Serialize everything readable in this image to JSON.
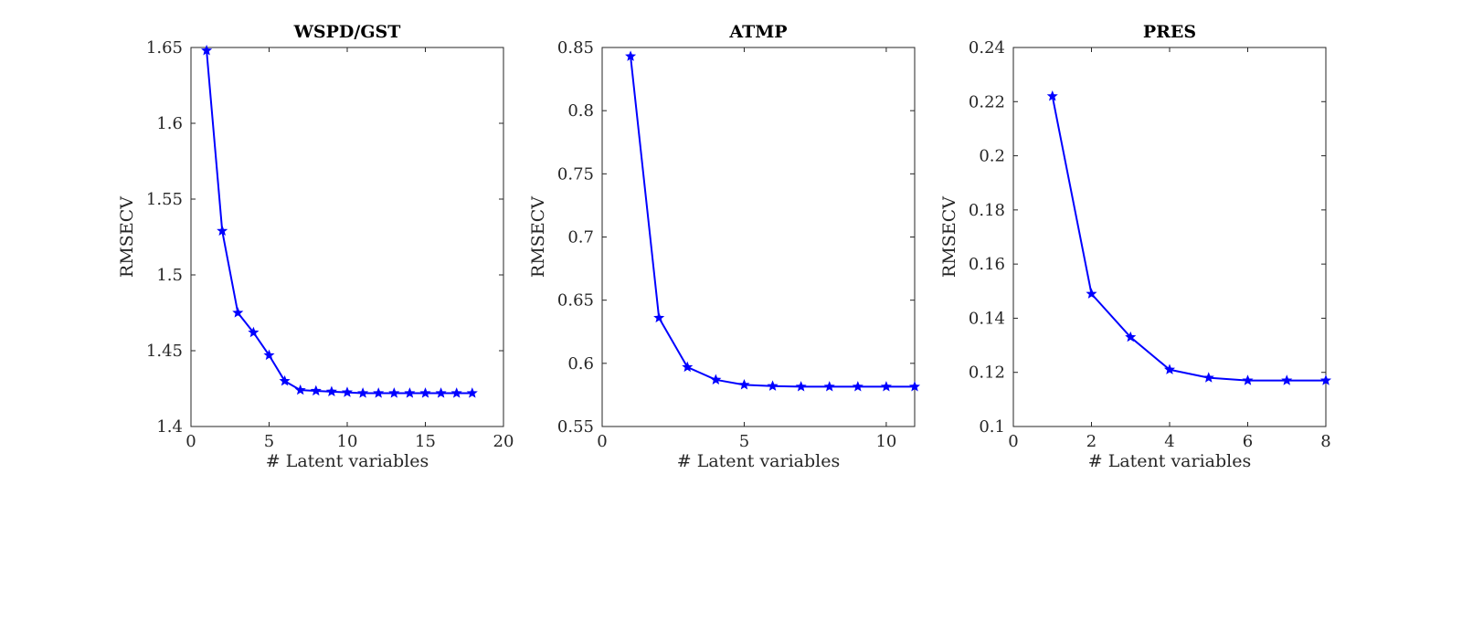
{
  "chart_data": [
    {
      "type": "line",
      "title": "WSPD/GST",
      "xlabel": "# Latent variables",
      "ylabel": "RMSECV",
      "xlim": [
        0,
        20
      ],
      "ylim": [
        1.4,
        1.65
      ],
      "xticks": [
        0,
        5,
        10,
        15,
        20
      ],
      "yticks": [
        1.4,
        1.45,
        1.5,
        1.55,
        1.6,
        1.65
      ],
      "xtick_labels": [
        "0",
        "5",
        "10",
        "15",
        "20"
      ],
      "ytick_labels": [
        "1.4",
        "1.45",
        "1.5",
        "1.55",
        "1.6",
        "1.65"
      ],
      "grid": false,
      "series": [
        {
          "color": "#0000ff",
          "marker": "star",
          "x": [
            1,
            2,
            3,
            4,
            5,
            6,
            7,
            8,
            9,
            10,
            11,
            12,
            13,
            14,
            15,
            16,
            17,
            18
          ],
          "y": [
            1.648,
            1.529,
            1.475,
            1.462,
            1.447,
            1.43,
            1.424,
            1.4235,
            1.423,
            1.4225,
            1.422,
            1.422,
            1.422,
            1.422,
            1.422,
            1.422,
            1.422,
            1.422
          ]
        }
      ]
    },
    {
      "type": "line",
      "title": "ATMP",
      "xlabel": "# Latent variables",
      "ylabel": "RMSECV",
      "xlim": [
        0,
        11
      ],
      "ylim": [
        0.55,
        0.85
      ],
      "xticks": [
        0,
        5,
        10
      ],
      "yticks": [
        0.55,
        0.6,
        0.65,
        0.7,
        0.75,
        0.8,
        0.85
      ],
      "xtick_labels": [
        "0",
        "5",
        "10"
      ],
      "ytick_labels": [
        "0.55",
        "0.6",
        "0.65",
        "0.7",
        "0.75",
        "0.8",
        "0.85"
      ],
      "grid": false,
      "series": [
        {
          "color": "#0000ff",
          "marker": "star",
          "x": [
            1,
            2,
            3,
            4,
            5,
            6,
            7,
            8,
            9,
            10,
            11
          ],
          "y": [
            0.843,
            0.636,
            0.597,
            0.587,
            0.583,
            0.582,
            0.5815,
            0.5815,
            0.5815,
            0.5815,
            0.5815
          ]
        }
      ]
    },
    {
      "type": "line",
      "title": "PRES",
      "xlabel": "# Latent variables",
      "ylabel": "RMSECV",
      "xlim": [
        0,
        8
      ],
      "ylim": [
        0.1,
        0.24
      ],
      "xticks": [
        0,
        2,
        4,
        6,
        8
      ],
      "yticks": [
        0.1,
        0.12,
        0.14,
        0.16,
        0.18,
        0.2,
        0.22,
        0.24
      ],
      "xtick_labels": [
        "0",
        "2",
        "4",
        "6",
        "8"
      ],
      "ytick_labels": [
        "0.1",
        "0.12",
        "0.14",
        "0.16",
        "0.18",
        "0.2",
        "0.22",
        "0.24"
      ],
      "grid": false,
      "series": [
        {
          "color": "#0000ff",
          "marker": "star",
          "x": [
            1,
            2,
            3,
            4,
            5,
            6,
            7,
            8
          ],
          "y": [
            0.222,
            0.149,
            0.133,
            0.121,
            0.118,
            0.117,
            0.117,
            0.117
          ]
        }
      ]
    }
  ]
}
